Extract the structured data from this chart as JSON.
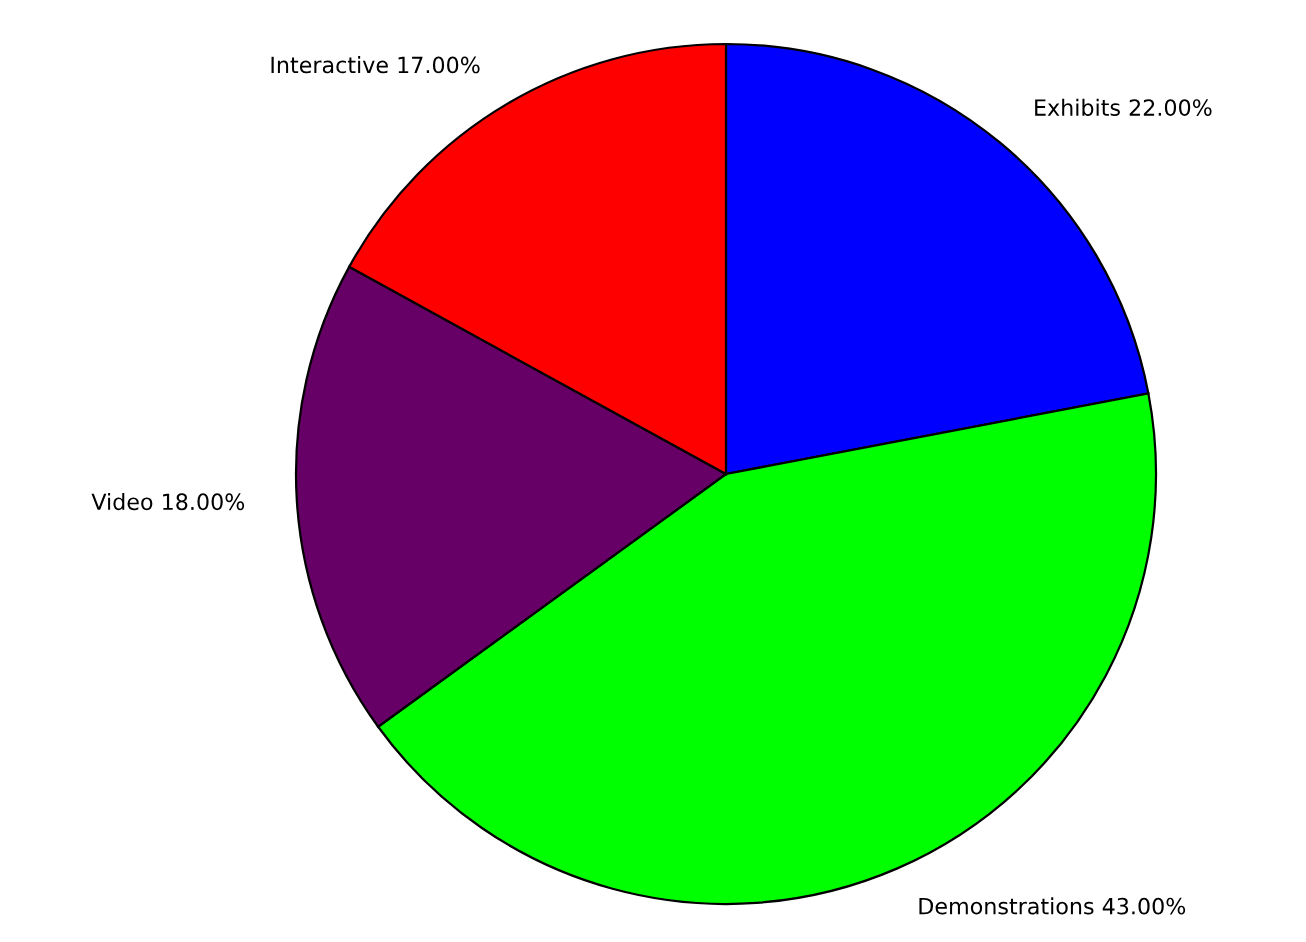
{
  "chart_data": {
    "type": "pie",
    "categories": [
      "Exhibits",
      "Demonstrations",
      "Video",
      "Interactive"
    ],
    "values": [
      22,
      43,
      18,
      17
    ],
    "colors": [
      "#0000ff",
      "#00ff00",
      "#660066",
      "#ff0000"
    ],
    "value_labels": [
      "22.00%",
      "43.00%",
      "18.00%",
      "17.00%"
    ]
  }
}
